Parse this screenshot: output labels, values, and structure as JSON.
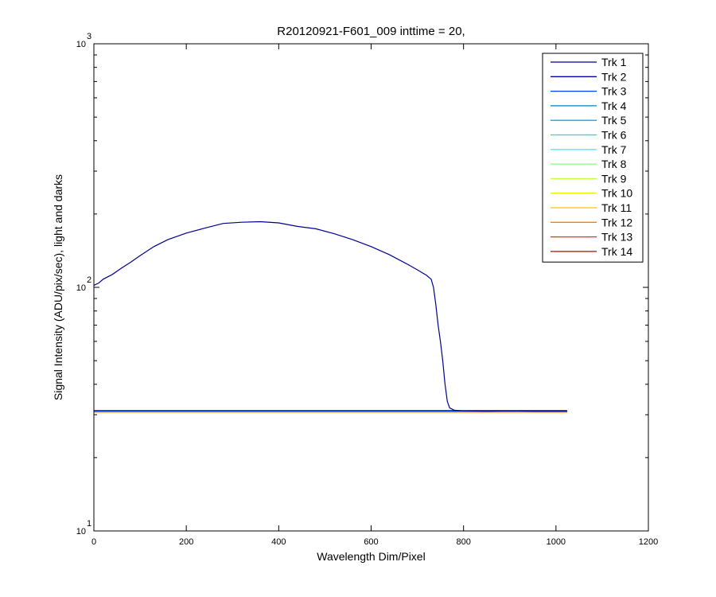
{
  "chart_data": {
    "type": "line",
    "title": "R20120921-F601_009 inttime = 20,",
    "xlabel": "Wavelength Dim/Pixel",
    "ylabel": "Signal Intensity (ADU/pix/sec), light and darks",
    "xlim": [
      0,
      1200
    ],
    "ylim": [
      10,
      1000
    ],
    "yscale": "log",
    "grid": false,
    "legend_position": "top-right",
    "x_ticks": [
      0,
      200,
      400,
      600,
      800,
      1000,
      1200
    ],
    "x_tick_labels": [
      "0",
      "200",
      "400",
      "600",
      "800",
      "1000",
      "1200"
    ],
    "y_ticks": [
      10,
      100,
      1000
    ],
    "y_tick_labels": [
      {
        "base": "10",
        "exp": "1"
      },
      {
        "base": "10",
        "exp": "2"
      },
      {
        "base": "10",
        "exp": "3"
      }
    ],
    "series": [
      {
        "name": "Trk 1",
        "color": "#00008f",
        "x": [
          0,
          10,
          20,
          40,
          60,
          80,
          100,
          130,
          160,
          200,
          240,
          280,
          320,
          360,
          400,
          440,
          480,
          520,
          560,
          600,
          640,
          680,
          700,
          720,
          730,
          735,
          740,
          745,
          750,
          755,
          760,
          765,
          770,
          780,
          800,
          850,
          900,
          950,
          1000,
          1024
        ],
        "y": [
          102,
          104,
          108,
          113,
          120,
          127,
          135,
          147,
          157,
          167,
          175,
          183,
          185,
          186,
          184,
          178,
          174,
          166,
          157,
          147,
          136,
          124,
          118,
          112,
          108,
          100,
          85,
          70,
          60,
          50,
          40,
          34,
          32,
          31.3,
          31.1,
          31.0,
          31.1,
          31.0,
          31.0,
          31.0
        ]
      },
      {
        "name": "Trk 2",
        "color": "#0000b0",
        "x": [
          0,
          1024
        ],
        "y": [
          31.2,
          31.2
        ]
      },
      {
        "name": "Trk 3",
        "color": "#0040ff",
        "x": [
          0,
          1024
        ],
        "y": [
          31.1,
          31.1
        ]
      },
      {
        "name": "Trk 4",
        "color": "#0080c0",
        "x": [
          0,
          1024
        ],
        "y": [
          31.0,
          31.0
        ]
      },
      {
        "name": "Trk 5",
        "color": "#00b0e0",
        "x": [
          0,
          1024
        ],
        "y": [
          31.0,
          31.0
        ]
      },
      {
        "name": "Trk 6",
        "color": "#00e0ff",
        "x": [
          0,
          1024
        ],
        "y": [
          31.0,
          31.0
        ]
      },
      {
        "name": "Trk 7",
        "color": "#40f0ff",
        "x": [
          0,
          1024
        ],
        "y": [
          30.9,
          30.9
        ]
      },
      {
        "name": "Trk 8",
        "color": "#80ff80",
        "x": [
          0,
          1024
        ],
        "y": [
          30.9,
          30.9
        ]
      },
      {
        "name": "Trk 9",
        "color": "#c0ff40",
        "x": [
          0,
          1024
        ],
        "y": [
          30.9,
          30.9
        ]
      },
      {
        "name": "Trk 10",
        "color": "#f0f000",
        "x": [
          0,
          1024
        ],
        "y": [
          30.8,
          30.8
        ]
      },
      {
        "name": "Trk 11",
        "color": "#ffc000",
        "x": [
          0,
          1024
        ],
        "y": [
          30.8,
          30.8
        ]
      },
      {
        "name": "Trk 12",
        "color": "#ff8000",
        "x": [
          0,
          1024
        ],
        "y": [
          30.8,
          30.8
        ]
      },
      {
        "name": "Trk 13",
        "color": "#ff3000",
        "x": [
          0,
          1024
        ],
        "y": [
          30.7,
          30.7
        ]
      },
      {
        "name": "Trk 14",
        "color": "#c00000",
        "x": [
          0,
          1024
        ],
        "y": [
          30.7,
          30.7
        ]
      }
    ]
  }
}
